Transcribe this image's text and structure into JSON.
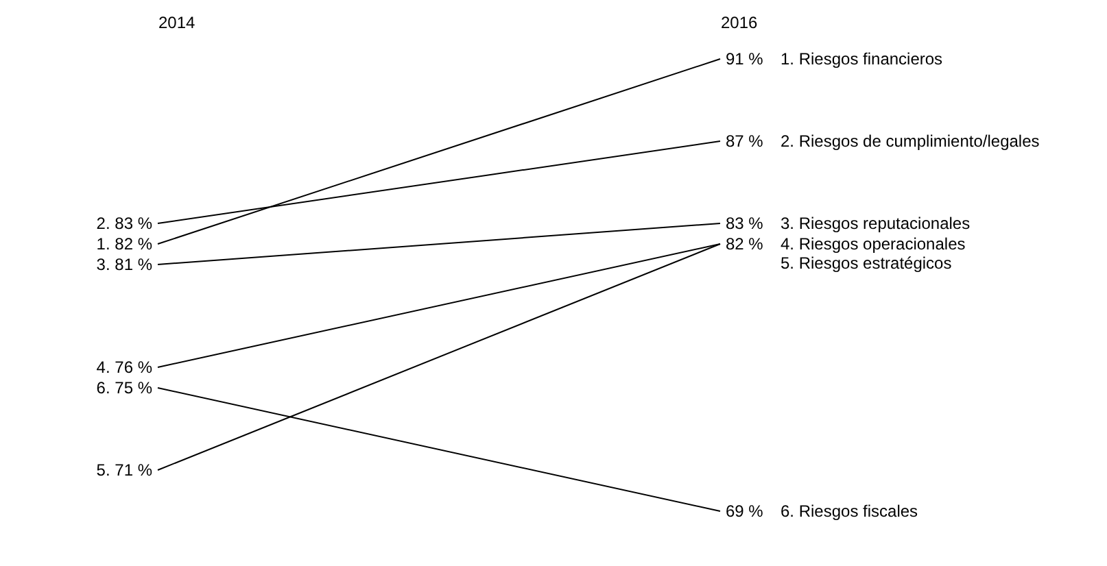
{
  "chart_data": {
    "type": "line",
    "categories": [
      "2014",
      "2016"
    ],
    "series": [
      {
        "name": "1. Riesgos financieros",
        "color": "#000000",
        "values": [
          82,
          91
        ],
        "value_labels": [
          "1. 82 %",
          "91 %"
        ]
      },
      {
        "name": "2. Riesgos de cumplimiento/legales",
        "color": "#000000",
        "values": [
          83,
          87
        ],
        "value_labels": [
          "2. 83 %",
          "87 %"
        ]
      },
      {
        "name": "3. Riesgos reputacionales",
        "color": "#000000",
        "values": [
          81,
          83
        ],
        "value_labels": [
          "3. 81 %",
          "83 %"
        ]
      },
      {
        "name": "4. Riesgos operacionales",
        "color": "#000000",
        "values": [
          76,
          82
        ],
        "value_labels": [
          "4. 76 %",
          "82 %"
        ]
      },
      {
        "name": "5. Riesgos estratégicos",
        "color": "#000000",
        "values": [
          71,
          82
        ],
        "value_labels": [
          "5. 71 %",
          null
        ]
      },
      {
        "name": "6. Riesgos fiscales",
        "color": "#000000",
        "values": [
          75,
          69
        ],
        "value_labels": [
          "6. 75 %",
          "69 %"
        ]
      }
    ],
    "tick_labels": "x",
    "legend": false,
    "marker": "none",
    "line_style": "solid"
  }
}
